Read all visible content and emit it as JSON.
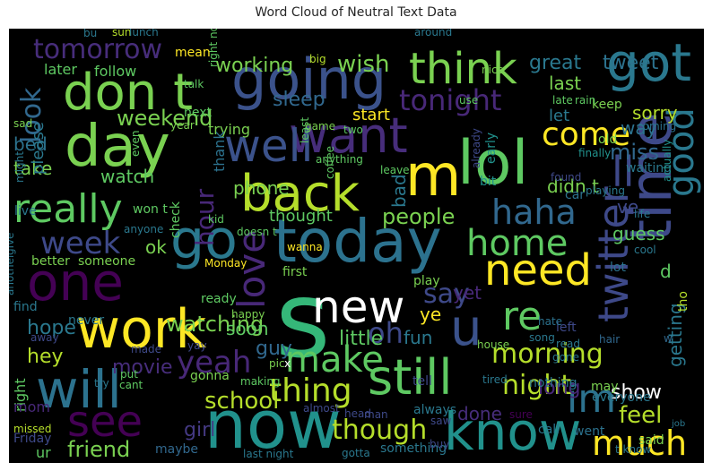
{
  "chart_data": {
    "type": "wordcloud",
    "title": "Word Cloud of Neutral Text Data",
    "background": "#000000",
    "colormap": "viridis",
    "words": [
      {
        "text": "s",
        "color": "#35b779"
      },
      {
        "text": "now",
        "color": "#21918c"
      },
      {
        "text": "today",
        "color": "#2c728e"
      },
      {
        "text": "lol",
        "color": "#5ec962"
      },
      {
        "text": "m",
        "color": "#fde725"
      },
      {
        "text": "day",
        "color": "#7ad151"
      },
      {
        "text": "going",
        "color": "#3b528b"
      },
      {
        "text": "work",
        "color": "#fde725"
      },
      {
        "text": "go",
        "color": "#2a788e"
      },
      {
        "text": "one",
        "color": "#440154"
      },
      {
        "text": "know",
        "color": "#21918c"
      },
      {
        "text": "time",
        "color": "#3e4989"
      },
      {
        "text": "will",
        "color": "#2c728e"
      },
      {
        "text": "got",
        "color": "#2a788e"
      },
      {
        "text": "don t",
        "color": "#7ad151"
      },
      {
        "text": "back",
        "color": "#b5de2b"
      },
      {
        "text": "want",
        "color": "#472d7b"
      },
      {
        "text": "well",
        "color": "#3b528b"
      },
      {
        "text": "still",
        "color": "#5ec962"
      },
      {
        "text": "twitter",
        "color": "#3e4989"
      },
      {
        "text": "new",
        "color": "#ffffff"
      },
      {
        "text": "see",
        "color": "#440154"
      },
      {
        "text": "u",
        "color": "#3b528b"
      },
      {
        "text": "need",
        "color": "#fde725"
      },
      {
        "text": "think",
        "color": "#7ad151"
      },
      {
        "text": "really",
        "color": "#5ec962"
      },
      {
        "text": "love",
        "color": "#482878"
      },
      {
        "text": "good",
        "color": "#2a788e"
      },
      {
        "text": "home",
        "color": "#5ec962"
      },
      {
        "text": "haha",
        "color": "#31688e"
      },
      {
        "text": "make",
        "color": "#5ec962"
      },
      {
        "text": "im",
        "color": "#2c728e"
      },
      {
        "text": "ll",
        "color": "#3e4989"
      },
      {
        "text": "re",
        "color": "#5ec962"
      },
      {
        "text": "much",
        "color": "#fde725"
      },
      {
        "text": "thing",
        "color": "#b5de2b"
      },
      {
        "text": "come",
        "color": "#fde725"
      },
      {
        "text": "tonight",
        "color": "#482878"
      },
      {
        "text": "yeah",
        "color": "#482878"
      },
      {
        "text": "week",
        "color": "#3e4989"
      },
      {
        "text": "though",
        "color": "#b5de2b"
      },
      {
        "text": "morning",
        "color": "#b5de2b"
      },
      {
        "text": "look",
        "color": "#31688e"
      },
      {
        "text": "tomorrow",
        "color": "#472d7b"
      },
      {
        "text": "night",
        "color": "#b5de2b"
      },
      {
        "text": "oh",
        "color": "#3e4989"
      },
      {
        "text": "say",
        "color": "#3e4989"
      },
      {
        "text": "hour",
        "color": "#482878"
      },
      {
        "text": "wish",
        "color": "#7ad151"
      },
      {
        "text": "school",
        "color": "#b5de2b"
      },
      {
        "text": "feel",
        "color": "#b5de2b"
      },
      {
        "text": "miss",
        "color": "#31688e"
      },
      {
        "text": "people",
        "color": "#7ad151"
      },
      {
        "text": "weekend",
        "color": "#7ad151"
      },
      {
        "text": "watching",
        "color": "#7ad151"
      },
      {
        "text": "friend",
        "color": "#7ad151"
      },
      {
        "text": "sleep",
        "color": "#31688e"
      },
      {
        "text": "working",
        "color": "#7ad151"
      },
      {
        "text": "great",
        "color": "#2a788e"
      },
      {
        "text": "tweet",
        "color": "#2c728e"
      },
      {
        "text": "long",
        "color": "#482878"
      },
      {
        "text": "show",
        "color": "#ffffff"
      },
      {
        "text": "little",
        "color": "#5ec962"
      },
      {
        "text": "getting",
        "color": "#2a788e"
      },
      {
        "text": "movie",
        "color": "#472d7b"
      },
      {
        "text": "hope",
        "color": "#2a788e"
      },
      {
        "text": "guy",
        "color": "#31688e"
      },
      {
        "text": "girl",
        "color": "#443983"
      },
      {
        "text": "hey",
        "color": "#b5de2b"
      },
      {
        "text": "thought",
        "color": "#5ec962"
      },
      {
        "text": "didn t",
        "color": "#7ad151"
      },
      {
        "text": "guess",
        "color": "#5ec962"
      },
      {
        "text": "sorry",
        "color": "#b5de2b"
      },
      {
        "text": "bad",
        "color": "#2a788e"
      },
      {
        "text": "way",
        "color": "#2c728e"
      },
      {
        "text": "last",
        "color": "#7ad151"
      },
      {
        "text": "start",
        "color": "#fde725"
      },
      {
        "text": "take",
        "color": "#7ad151"
      },
      {
        "text": "watch",
        "color": "#5ec962"
      },
      {
        "text": "phone",
        "color": "#7ad151"
      },
      {
        "text": "bed",
        "color": "#2c728e"
      },
      {
        "text": "done",
        "color": "#472d7b"
      },
      {
        "text": "soon",
        "color": "#5ec962"
      },
      {
        "text": "ok",
        "color": "#7ad151"
      },
      {
        "text": "ye",
        "color": "#fde725"
      },
      {
        "text": "fun",
        "color": "#2a788e"
      },
      {
        "text": "yet",
        "color": "#482878"
      },
      {
        "text": "ve",
        "color": "#3e4989"
      },
      {
        "text": "let",
        "color": "#2a788e"
      },
      {
        "text": "please",
        "color": "#2a788e"
      },
      {
        "text": "later",
        "color": "#5ec962"
      },
      {
        "text": "follow",
        "color": "#5ec962"
      },
      {
        "text": "trying",
        "color": "#7ad151"
      },
      {
        "text": "thank",
        "color": "#2c728e"
      },
      {
        "text": "d",
        "color": "#5ec962"
      },
      {
        "text": "play",
        "color": "#7ad151"
      },
      {
        "text": "right",
        "color": "#5ec962"
      },
      {
        "text": "mom",
        "color": "#482878"
      },
      {
        "text": "ur",
        "color": "#5ec962"
      },
      {
        "text": "Friday",
        "color": "#3e4989"
      },
      {
        "text": "maybe",
        "color": "#31688e"
      },
      {
        "text": "always",
        "color": "#2a788e"
      },
      {
        "text": "something",
        "color": "#2a788e"
      },
      {
        "text": "tell",
        "color": "#3e4989"
      },
      {
        "text": "sure",
        "color": "#440154"
      },
      {
        "text": "call",
        "color": "#2a788e"
      },
      {
        "text": "went",
        "color": "#2c728e"
      },
      {
        "text": "said",
        "color": "#7ad151"
      },
      {
        "text": "may",
        "color": "#7ad151"
      },
      {
        "text": "nothing",
        "color": "#2a788e"
      },
      {
        "text": "everyone",
        "color": "#2a788e"
      },
      {
        "text": "keep",
        "color": "#7ad151"
      },
      {
        "text": "old",
        "color": "#7ad151"
      },
      {
        "text": "waiting",
        "color": "#2a788e"
      },
      {
        "text": "finally",
        "color": "#21918c"
      },
      {
        "text": "actually",
        "color": "#21918c"
      },
      {
        "text": "coming",
        "color": "#2c728e"
      },
      {
        "text": "early",
        "color": "#21918c"
      },
      {
        "text": "already",
        "color": "#3e4989"
      },
      {
        "text": "bit",
        "color": "#21918c"
      },
      {
        "text": "car",
        "color": "#2c728e"
      },
      {
        "text": "lot",
        "color": "#2c728e"
      },
      {
        "text": "left",
        "color": "#3e4989"
      },
      {
        "text": "read",
        "color": "#2a788e"
      },
      {
        "text": "gone",
        "color": "#2a788e"
      },
      {
        "text": "hair",
        "color": "#31688e"
      },
      {
        "text": "hate",
        "color": "#2c728e"
      },
      {
        "text": "song",
        "color": "#2a788e"
      },
      {
        "text": "house",
        "color": "#7ad151"
      },
      {
        "text": "cool",
        "color": "#2a788e"
      },
      {
        "text": "life",
        "color": "#2a788e"
      },
      {
        "text": "playing",
        "color": "#2a788e"
      },
      {
        "text": "found",
        "color": "#3e4989"
      },
      {
        "text": "tired",
        "color": "#2a788e"
      },
      {
        "text": "almost",
        "color": "#3e4989"
      },
      {
        "text": "man",
        "color": "#3e4989"
      },
      {
        "text": "head",
        "color": "#3e4989"
      },
      {
        "text": "saw",
        "color": "#3e4989"
      },
      {
        "text": "buy",
        "color": "#3e4989"
      },
      {
        "text": "gotta",
        "color": "#2a788e"
      },
      {
        "text": "last night",
        "color": "#2a788e"
      },
      {
        "text": "job",
        "color": "#2a788e"
      },
      {
        "text": "t know",
        "color": "#2a788e"
      },
      {
        "text": "w",
        "color": "#31688e"
      },
      {
        "text": "tho",
        "color": "#b5de2b"
      },
      {
        "text": "better",
        "color": "#7ad151"
      },
      {
        "text": "someone",
        "color": "#7ad151"
      },
      {
        "text": "Monday",
        "color": "#fde725"
      },
      {
        "text": "first",
        "color": "#7ad151"
      },
      {
        "text": "never",
        "color": "#2a788e"
      },
      {
        "text": "find",
        "color": "#2a788e"
      },
      {
        "text": "away",
        "color": "#3e4989"
      },
      {
        "text": "yay",
        "color": "#3e4989"
      },
      {
        "text": "made",
        "color": "#3e4989"
      },
      {
        "text": "gonna",
        "color": "#7ad151"
      },
      {
        "text": "ready",
        "color": "#5ec962"
      },
      {
        "text": "happy",
        "color": "#7ad151"
      },
      {
        "text": "pic",
        "color": "#7ad151"
      },
      {
        "text": "x",
        "color": "#ffffff"
      },
      {
        "text": "put",
        "color": "#5ec962"
      },
      {
        "text": "cant",
        "color": "#5ec962"
      },
      {
        "text": "try",
        "color": "#2a788e"
      },
      {
        "text": "making",
        "color": "#5ec962"
      },
      {
        "text": "another",
        "color": "#2a788e"
      },
      {
        "text": "give",
        "color": "#2a788e"
      },
      {
        "text": "anyone",
        "color": "#2a788e"
      },
      {
        "text": "live",
        "color": "#2a788e"
      },
      {
        "text": "won t",
        "color": "#5ec962"
      },
      {
        "text": "check",
        "color": "#5ec962"
      },
      {
        "text": "kid",
        "color": "#5ec962"
      },
      {
        "text": "doesn t",
        "color": "#5ec962"
      },
      {
        "text": "wanna",
        "color": "#fde725"
      },
      {
        "text": "anything",
        "color": "#5ec962"
      },
      {
        "text": "coffee",
        "color": "#5ec962"
      },
      {
        "text": "leave",
        "color": "#5ec962"
      },
      {
        "text": "even",
        "color": "#5ec962"
      },
      {
        "text": "might",
        "color": "#2a788e"
      },
      {
        "text": "sad",
        "color": "#7ad151"
      },
      {
        "text": "year",
        "color": "#7ad151"
      },
      {
        "text": "next",
        "color": "#5ec962"
      },
      {
        "text": "game",
        "color": "#7ad151"
      },
      {
        "text": "least",
        "color": "#5ec962"
      },
      {
        "text": "two",
        "color": "#5ec962"
      },
      {
        "text": "talk",
        "color": "#5ec962"
      },
      {
        "text": "right now",
        "color": "#5ec962"
      },
      {
        "text": "use",
        "color": "#5ec962"
      },
      {
        "text": "late",
        "color": "#5ec962"
      },
      {
        "text": "rain",
        "color": "#5ec962"
      },
      {
        "text": "nice",
        "color": "#7ad151"
      },
      {
        "text": "around",
        "color": "#2a788e"
      },
      {
        "text": "big",
        "color": "#b5de2b"
      },
      {
        "text": "mean",
        "color": "#fde725"
      },
      {
        "text": "sun",
        "color": "#b5de2b"
      },
      {
        "text": "lunch",
        "color": "#2a788e"
      },
      {
        "text": "missed",
        "color": "#b5de2b"
      },
      {
        "text": "bu",
        "color": "#2a788e"
      }
    ]
  }
}
